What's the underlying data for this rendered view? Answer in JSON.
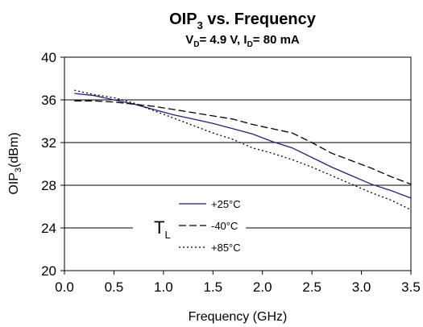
{
  "chart_data": {
    "type": "line",
    "title": {
      "main": "OIP",
      "main_sub": "3",
      "main_rest": " vs. Frequency"
    },
    "subtitle": {
      "p1": "V",
      "s1": "D",
      "p2": "= 4.9 V, I",
      "s2": "D",
      "p3": "= 80 mA"
    },
    "xlabel": "Frequency (GHz)",
    "ylabel": {
      "p1": "OIP",
      "s1": "3",
      "p2": "(dBm)"
    },
    "xlim": [
      0,
      3.5
    ],
    "ylim": [
      20,
      40
    ],
    "xticks": [
      "0.0",
      "0.5",
      "1.0",
      "1.5",
      "2.0",
      "2.5",
      "3.0",
      "3.5"
    ],
    "yticks": [
      "20",
      "24",
      "28",
      "32",
      "36",
      "40"
    ],
    "grid": "horizontal",
    "legend": {
      "position": "bottom-left",
      "group_label": "T",
      "group_label_sub": "L"
    },
    "series": [
      {
        "name": "+25°C",
        "style": "solid",
        "color": "#1f1f8a",
        "x": [
          0.1,
          0.3,
          0.5,
          0.7,
          0.9,
          1.1,
          1.3,
          1.5,
          1.7,
          1.9,
          2.1,
          2.3,
          2.5,
          2.7,
          2.9,
          3.1,
          3.3,
          3.5
        ],
        "y": [
          36.6,
          36.4,
          36.0,
          35.6,
          35.1,
          34.6,
          34.2,
          33.8,
          33.3,
          32.8,
          32.1,
          31.5,
          30.6,
          29.7,
          28.9,
          28.1,
          27.5,
          26.8
        ]
      },
      {
        "name": "-40°C",
        "style": "dashed",
        "color": "#000000",
        "x": [
          0.1,
          0.3,
          0.5,
          0.7,
          0.9,
          1.1,
          1.3,
          1.5,
          1.7,
          1.9,
          2.1,
          2.3,
          2.5,
          2.7,
          2.9,
          3.1,
          3.3,
          3.5
        ],
        "y": [
          35.9,
          35.9,
          35.8,
          35.6,
          35.4,
          35.1,
          34.8,
          34.5,
          34.2,
          33.7,
          33.3,
          32.9,
          32.0,
          31.0,
          30.3,
          29.6,
          28.8,
          28.1
        ]
      },
      {
        "name": "+85°C",
        "style": "dotted",
        "color": "#000000",
        "x": [
          0.1,
          0.3,
          0.5,
          0.7,
          0.9,
          1.1,
          1.3,
          1.5,
          1.7,
          1.9,
          2.1,
          2.3,
          2.5,
          2.7,
          2.9,
          3.1,
          3.3,
          3.5
        ],
        "y": [
          36.9,
          36.5,
          36.2,
          35.7,
          35.0,
          34.3,
          33.6,
          32.9,
          32.3,
          31.5,
          31.0,
          30.4,
          29.7,
          28.9,
          28.1,
          27.3,
          26.6,
          25.7
        ]
      }
    ]
  }
}
